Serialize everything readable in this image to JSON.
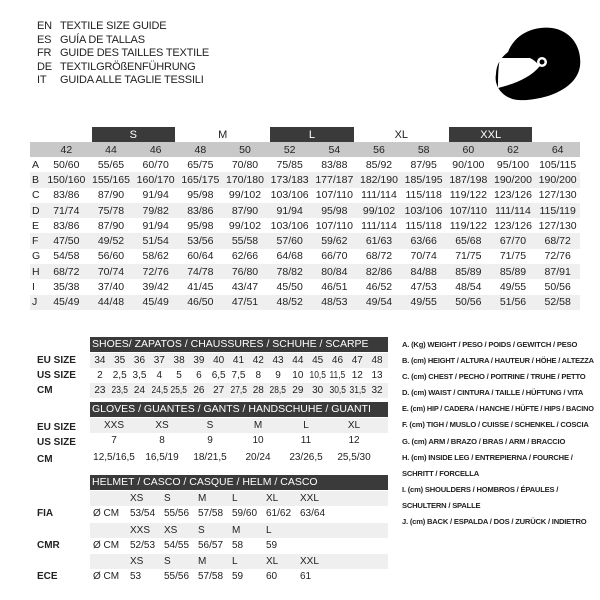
{
  "titles": [
    {
      "code": "EN",
      "text": "TEXTILE SIZE GUIDE"
    },
    {
      "code": "ES",
      "text": "GUÍA DE TALLAS"
    },
    {
      "code": "FR",
      "text": "GUIDE DES TAILLES TEXTILE"
    },
    {
      "code": "DE",
      "text": "TEXTILGRÖßENFÜHRUNG"
    },
    {
      "code": "IT",
      "text": "GUIDA ALLE TAGLIE TESSILI"
    }
  ],
  "icon": "helmet-icon",
  "textile": {
    "bands": [
      {
        "label": "",
        "dark": false
      },
      {
        "label": "S",
        "dark": true
      },
      {
        "label": "M",
        "dark": false
      },
      {
        "label": "L",
        "dark": true
      },
      {
        "label": "XL",
        "dark": false
      },
      {
        "label": "XXL",
        "dark": true
      }
    ],
    "sizes": [
      "42",
      "44",
      "46",
      "48",
      "50",
      "52",
      "54",
      "56",
      "58",
      "60",
      "62",
      "64"
    ],
    "rows": [
      {
        "label": "A",
        "values": [
          "50/60",
          "55/65",
          "60/70",
          "65/75",
          "70/80",
          "75/85",
          "83/88",
          "85/92",
          "87/95",
          "90/100",
          "95/100",
          "105/115"
        ]
      },
      {
        "label": "B",
        "values": [
          "150/160",
          "155/165",
          "160/170",
          "165/175",
          "170/180",
          "173/183",
          "177/187",
          "182/190",
          "185/195",
          "187/198",
          "190/200",
          "190/200"
        ]
      },
      {
        "label": "C",
        "values": [
          "83/86",
          "87/90",
          "91/94",
          "95/98",
          "99/102",
          "103/106",
          "107/110",
          "111/114",
          "115/118",
          "119/122",
          "123/126",
          "127/130"
        ]
      },
      {
        "label": "D",
        "values": [
          "71/74",
          "75/78",
          "79/82",
          "83/86",
          "87/90",
          "91/94",
          "95/98",
          "99/102",
          "103/106",
          "107/110",
          "111/114",
          "115/119"
        ]
      },
      {
        "label": "E",
        "values": [
          "83/86",
          "87/90",
          "91/94",
          "95/98",
          "99/102",
          "103/106",
          "107/110",
          "111/114",
          "115/118",
          "119/122",
          "123/126",
          "127/130"
        ]
      },
      {
        "label": "F",
        "values": [
          "47/50",
          "49/52",
          "51/54",
          "53/56",
          "55/58",
          "57/60",
          "59/62",
          "61/63",
          "63/66",
          "65/68",
          "67/70",
          "68/72"
        ]
      },
      {
        "label": "G",
        "values": [
          "54/58",
          "56/60",
          "58/62",
          "60/64",
          "62/66",
          "64/68",
          "66/70",
          "68/72",
          "70/74",
          "71/75",
          "71/75",
          "72/76"
        ]
      },
      {
        "label": "H",
        "values": [
          "68/72",
          "70/74",
          "72/76",
          "74/78",
          "76/80",
          "78/82",
          "80/84",
          "82/86",
          "84/88",
          "85/89",
          "85/89",
          "87/91"
        ]
      },
      {
        "label": "I",
        "values": [
          "35/38",
          "37/40",
          "39/42",
          "41/45",
          "43/47",
          "45/50",
          "46/51",
          "46/52",
          "47/53",
          "48/54",
          "49/55",
          "50/56"
        ]
      },
      {
        "label": "J",
        "values": [
          "45/49",
          "44/48",
          "45/49",
          "46/50",
          "47/51",
          "48/52",
          "48/53",
          "49/54",
          "49/55",
          "50/56",
          "51/56",
          "52/58"
        ]
      }
    ]
  },
  "shoes": {
    "title": "SHOES/ ZAPATOS / CHAUSSURES / SCHUHE / SCARPE",
    "rows": [
      {
        "label": "EU SIZE",
        "values": [
          "34",
          "35",
          "36",
          "37",
          "38",
          "39",
          "40",
          "41",
          "42",
          "43",
          "44",
          "45",
          "46",
          "47",
          "48"
        ]
      },
      {
        "label": "US SIZE",
        "values": [
          "2",
          "2,5",
          "3,5",
          "4",
          "5",
          "6",
          "6,5",
          "7,5",
          "8",
          "9",
          "10",
          "10,5",
          "11,5",
          "12",
          "13"
        ]
      },
      {
        "label": "CM",
        "values": [
          "23",
          "23,5",
          "24",
          "24,5",
          "25,5",
          "26",
          "27",
          "27,5",
          "28",
          "28,5",
          "29",
          "30",
          "30,5",
          "31,5",
          "32"
        ]
      }
    ]
  },
  "gloves": {
    "title": "GLOVES / GUANTES / GANTS / HANDSCHUHE / GUANTI",
    "rows": [
      {
        "label": "EU SIZE",
        "values": [
          "XXS",
          "XS",
          "S",
          "M",
          "L",
          "XL"
        ]
      },
      {
        "label": "US SIZE",
        "values": [
          "7",
          "8",
          "9",
          "10",
          "11",
          "12"
        ]
      },
      {
        "label": "CM",
        "values": [
          "12,5/16,5",
          "16,5/19",
          "18/21,5",
          "20/24",
          "23/26,5",
          "25,5/30"
        ]
      }
    ]
  },
  "helmet": {
    "title": "HELMET / CASCO / CASQUE / HELM / CASCO",
    "groups": [
      {
        "label": "FIA",
        "unit": "Ø CM",
        "sizes": [
          "XS",
          "S",
          "M",
          "L",
          "XL",
          "XXL"
        ],
        "values": [
          "53/54",
          "55/56",
          "57/58",
          "59/60",
          "61/62",
          "63/64"
        ]
      },
      {
        "label": "CMR",
        "unit": "Ø CM",
        "sizes": [
          "XXS",
          "XS",
          "S",
          "M",
          "L"
        ],
        "values": [
          "52/53",
          "54/55",
          "56/57",
          "58",
          "59"
        ]
      },
      {
        "label": "ECE",
        "unit": "Ø CM",
        "sizes": [
          "XS",
          "S",
          "M",
          "L",
          "XL",
          "XXL"
        ],
        "values": [
          "53",
          "55/56",
          "57/58",
          "59",
          "60",
          "61"
        ]
      }
    ]
  },
  "legend": [
    "A. (Kg) WEIGHT / PESO / POIDS / GEWITCH / PESO",
    "B. (cm) HEIGHT / ALTURA / HAUTEUR / HÖHE / ALTEZZA",
    "C. (cm) CHEST / PECHO / POITRINE / TRUHE / PETTO",
    "D. (cm) WAIST / CINTURA / TAILLE / HÜFTUNG / VITA",
    "E. (cm) HIP / CADERA / HANCHE / HÜFTE / HIPS /  BACINO",
    "F.  (cm) TIGH / MUSLO / CUISSE / SCHENKEL / COSCIA",
    "G. (cm) ARM  / BRAZO / BRAS / ARM / BRACCIO",
    "H. (cm) INSIDE LEG / ENTREPIERNA / FOURCHE /",
    "SCHRITT / FORCELLA",
    "I.  (cm) SHOULDERS / HOMBROS / ÉPAULES /",
    "SCHULTERN / SPALLE",
    "J. (cm) BACK / ESPALDA / DOS / ZURÜCK / INDIETRO"
  ]
}
